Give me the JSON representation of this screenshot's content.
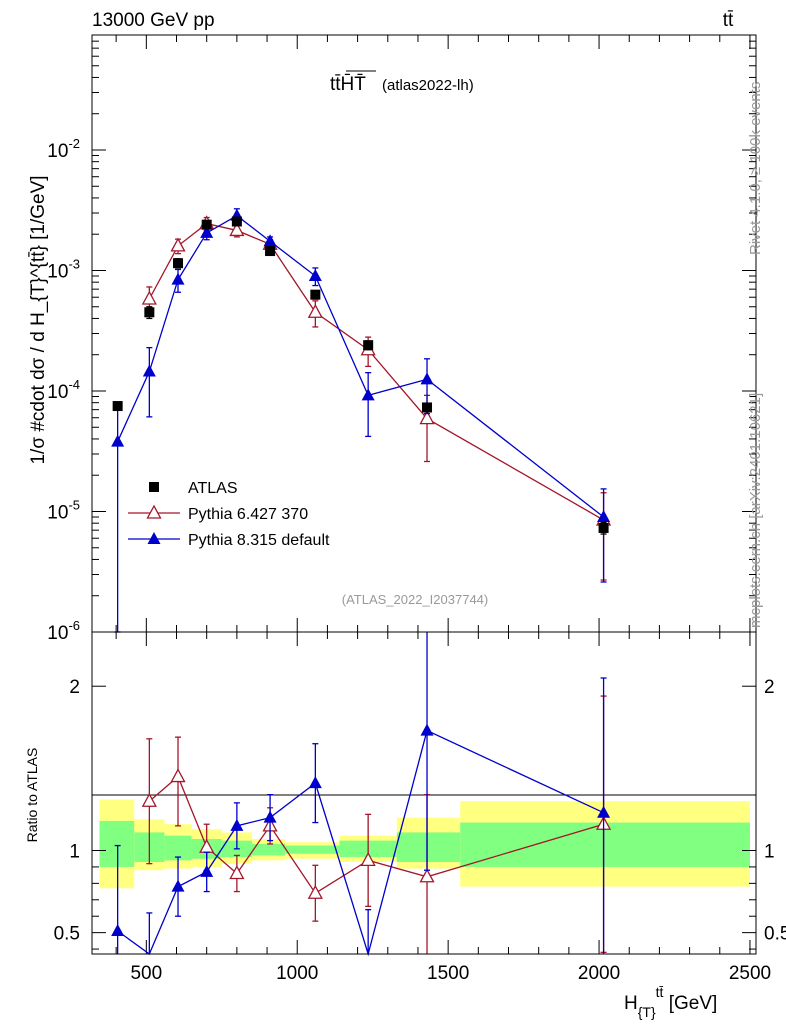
{
  "chart_data": {
    "type": "scatter",
    "header": {
      "left": "13000 GeV pp",
      "right": "tt̄"
    },
    "title": "tt̄H̄T̄",
    "subtitle": "(atlas2022-lh)",
    "analysis_id": "(ATLAS_2022_I2037744)",
    "side_label_top": "Rivet 4.1.0, ≥ 100k events",
    "side_label_bottom": "mcplots.cern.ch [arXiv:2401.10621]",
    "xlabel": "H_{T}^{tt̄} [GeV]",
    "xlabel_parts": {
      "base": "H",
      "sub": "{T}",
      "sup": "tt̄",
      "unit": " [GeV]"
    },
    "ylabel": "1/σ #cdot dσ / d H_{T}^{tt̄} [1/GeV]",
    "ratio_ylabel": "Ratio to ATLAS",
    "xlim": [
      320,
      2520
    ],
    "x_ticks": [
      500,
      1000,
      1500,
      2000,
      2500
    ],
    "x_tick_labels": [
      "500",
      "1000",
      "1500",
      "2000",
      "2500"
    ],
    "ylim_log": [
      1e-06,
      0.09
    ],
    "y_ticks": [
      {
        "value": 0.01,
        "base": "10",
        "exp": "-2"
      },
      {
        "value": 0.001,
        "base": "10",
        "exp": "-3"
      },
      {
        "value": 0.0001,
        "base": "10",
        "exp": "-4"
      },
      {
        "value": 1e-05,
        "base": "10",
        "exp": "-5"
      },
      {
        "value": 1e-06,
        "base": "10",
        "exp": "-6"
      }
    ],
    "ratio_ylim": [
      0.37,
      2.33
    ],
    "ratio_ticks": [
      0.5,
      1,
      2
    ],
    "ratio_tick_labels": [
      "0.5",
      "1",
      "2"
    ],
    "legend_position": "lower-left",
    "series": [
      {
        "name": "ATLAS",
        "color": "#000000",
        "marker": "square",
        "x": [
          405,
          510,
          605,
          700,
          800,
          910,
          1060,
          1235,
          1430,
          2015
        ],
        "y": [
          7.5e-05,
          0.00045,
          0.00115,
          0.0024,
          0.00255,
          0.00145,
          0.00063,
          0.00024,
          7.3e-05,
          7.3e-06
        ],
        "y_err_low": [
          0,
          5e-05,
          0.0001,
          0.00015,
          0.00015,
          0.0001,
          5e-05,
          2e-05,
          5e-06,
          8e-07
        ],
        "y_err_high": [
          0,
          5e-05,
          0.0001,
          0.00015,
          0.00015,
          0.0001,
          5e-05,
          2e-05,
          5e-06,
          8e-07
        ]
      },
      {
        "name": "Pythia 6.427 370",
        "color": "#a3162b",
        "marker": "open-triangle",
        "x": [
          510,
          605,
          700,
          800,
          910,
          1060,
          1235,
          1430,
          2015
        ],
        "y": [
          0.00058,
          0.0016,
          0.00245,
          0.00215,
          0.00165,
          0.00045,
          0.00022,
          5.9e-05,
          8.5e-06
        ],
        "y_err_low": [
          0.00015,
          0.00022,
          0.0003,
          0.00025,
          0.00015,
          0.00011,
          6e-05,
          3.3e-05,
          5.8e-06
        ],
        "y_err_high": [
          0.00015,
          0.00022,
          0.0003,
          0.00025,
          0.00015,
          0.00011,
          6e-05,
          3.3e-05,
          5.8e-06
        ],
        "ratio": [
          1.3,
          1.45,
          1.02,
          0.86,
          1.15,
          0.74,
          0.94,
          0.84,
          1.16
        ],
        "ratio_err_low": [
          0.38,
          0.3,
          0.14,
          0.11,
          0.11,
          0.17,
          0.28,
          0.5,
          0.78
        ],
        "ratio_err_high": [
          0.38,
          0.24,
          0.14,
          0.11,
          0.11,
          0.17,
          0.28,
          0.5,
          0.78
        ]
      },
      {
        "name": "Pythia 8.315 default",
        "color": "#0000cc",
        "marker": "filled-triangle",
        "x": [
          405,
          510,
          605,
          700,
          800,
          910,
          1060,
          1235,
          1430,
          2015
        ],
        "y": [
          3.8e-05,
          0.000145,
          0.00084,
          0.00205,
          0.00285,
          0.00175,
          0.0009,
          9.2e-05,
          0.000125,
          9e-06
        ],
        "y_err_low": [
          3.7e-05,
          8.4e-05,
          0.00018,
          0.00025,
          0.0004,
          0.00015,
          0.00015,
          5e-05,
          6e-05,
          6.4e-06
        ],
        "y_err_high": [
          3.7e-05,
          8.4e-05,
          0.00018,
          0.00025,
          0.0004,
          0.00015,
          0.00015,
          5e-05,
          6e-05,
          6.4e-06
        ],
        "ratio": [
          0.51,
          0.32,
          0.78,
          0.87,
          1.15,
          1.2,
          1.41,
          0.34,
          1.73,
          1.23
        ],
        "ratio_err_low": [
          0.49,
          0.3,
          0.18,
          0.12,
          0.14,
          0.14,
          0.24,
          0.3,
          0.85,
          0.9
        ],
        "ratio_err_high": [
          0.52,
          0.3,
          0.18,
          0.12,
          0.14,
          0.14,
          0.24,
          0.3,
          0.6,
          0.82
        ]
      }
    ],
    "ratio_bands": {
      "edges": [
        345,
        460,
        560,
        650,
        750,
        850,
        960,
        1140,
        1330,
        1540,
        2500
      ],
      "outer_low": [
        0.77,
        0.88,
        0.89,
        0.9,
        0.92,
        0.94,
        0.95,
        0.93,
        0.89,
        0.78
      ],
      "outer_high": [
        1.31,
        1.19,
        1.16,
        1.13,
        1.11,
        1.07,
        1.05,
        1.09,
        1.2,
        1.3
      ],
      "inner_low": [
        0.9,
        0.93,
        0.94,
        0.95,
        0.96,
        0.97,
        0.98,
        0.96,
        0.93,
        0.9
      ],
      "inner_high": [
        1.18,
        1.11,
        1.09,
        1.07,
        1.06,
        1.04,
        1.03,
        1.06,
        1.11,
        1.17
      ],
      "outer_color": "#ffff80",
      "inner_color": "#80ff80"
    }
  }
}
